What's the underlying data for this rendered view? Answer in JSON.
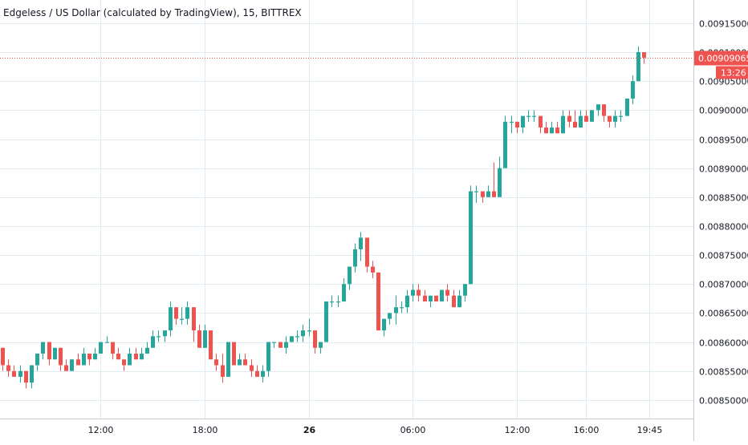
{
  "chart_data": {
    "type": "candlestick",
    "title": "Edgeless / US Dollar (calculated by TradingView), 15, BITTREX",
    "y_ticks": [
      "0.00915000",
      "0.00910000",
      "0.00905000",
      "0.00900000",
      "0.00895000",
      "0.00890000",
      "0.00885000",
      "0.00880000",
      "0.00875000",
      "0.00870000",
      "0.00865000",
      "0.00860000",
      "0.00855000",
      "0.00850000"
    ],
    "y_tick_values": [
      0.00915,
      0.0091,
      0.00905,
      0.009,
      0.00895,
      0.0089,
      0.00885,
      0.0088,
      0.00875,
      0.0087,
      0.00865,
      0.0086,
      0.00855,
      0.0085
    ],
    "ylim": [
      0.008468,
      0.00919
    ],
    "x_ticks": [
      {
        "label": "06:00",
        "bar": -7
      },
      {
        "label": "12:00",
        "bar": 17
      },
      {
        "label": "18:00",
        "bar": 35
      },
      {
        "label": "26",
        "bar": 53
      },
      {
        "label": "06:00",
        "bar": 71
      },
      {
        "label": "12:00",
        "bar": 89
      },
      {
        "label": "16:00",
        "bar": 101
      },
      {
        "label": "19:45",
        "bar": 112
      }
    ],
    "last_price": {
      "value": 0.00909065,
      "label": "0.00909065",
      "countdown": "13:26"
    },
    "colors": {
      "up": "#26a69a",
      "down": "#ef5350",
      "grid": "#e1ecf2",
      "axis_text": "#131722"
    },
    "ohlc": [
      [
        0.00859,
        0.00859,
        0.00855,
        0.00856
      ],
      [
        0.00856,
        0.00857,
        0.00854,
        0.00855
      ],
      [
        0.00855,
        0.00856,
        0.00854,
        0.00854
      ],
      [
        0.00854,
        0.00856,
        0.00853,
        0.00855
      ],
      [
        0.00855,
        0.00855,
        0.00852,
        0.00853
      ],
      [
        0.00853,
        0.00856,
        0.00852,
        0.00856
      ],
      [
        0.00856,
        0.00858,
        0.00855,
        0.00858
      ],
      [
        0.00858,
        0.0086,
        0.00857,
        0.0086
      ],
      [
        0.0086,
        0.0086,
        0.00856,
        0.00857
      ],
      [
        0.00857,
        0.00859,
        0.00857,
        0.00859
      ],
      [
        0.00859,
        0.00859,
        0.00855,
        0.00856
      ],
      [
        0.00856,
        0.00857,
        0.00855,
        0.00855
      ],
      [
        0.00855,
        0.00857,
        0.00855,
        0.00857
      ],
      [
        0.00857,
        0.00858,
        0.00856,
        0.00856
      ],
      [
        0.00856,
        0.00859,
        0.00856,
        0.00858
      ],
      [
        0.00858,
        0.00858,
        0.00856,
        0.00857
      ],
      [
        0.00857,
        0.00859,
        0.00857,
        0.00858
      ],
      [
        0.00858,
        0.0086,
        0.00858,
        0.0086
      ],
      [
        0.0086,
        0.00861,
        0.0086,
        0.0086
      ],
      [
        0.0086,
        0.0086,
        0.00857,
        0.00858
      ],
      [
        0.00858,
        0.00859,
        0.00857,
        0.00857
      ],
      [
        0.00857,
        0.00857,
        0.00855,
        0.00856
      ],
      [
        0.00856,
        0.00859,
        0.00856,
        0.00858
      ],
      [
        0.00858,
        0.00859,
        0.00857,
        0.00857
      ],
      [
        0.00857,
        0.00859,
        0.00857,
        0.00858
      ],
      [
        0.00858,
        0.0086,
        0.00858,
        0.00859
      ],
      [
        0.00859,
        0.00862,
        0.00859,
        0.00861
      ],
      [
        0.00861,
        0.00862,
        0.0086,
        0.00861
      ],
      [
        0.00861,
        0.00862,
        0.0086,
        0.00862
      ],
      [
        0.00862,
        0.00867,
        0.00861,
        0.00866
      ],
      [
        0.00866,
        0.00866,
        0.00863,
        0.00864
      ],
      [
        0.00864,
        0.00866,
        0.00863,
        0.00864
      ],
      [
        0.00864,
        0.00867,
        0.00863,
        0.00866
      ],
      [
        0.00866,
        0.00866,
        0.0086,
        0.00862
      ],
      [
        0.00862,
        0.00863,
        0.00859,
        0.00859
      ],
      [
        0.00859,
        0.00863,
        0.00859,
        0.00862
      ],
      [
        0.00862,
        0.00862,
        0.00857,
        0.00857
      ],
      [
        0.00857,
        0.00858,
        0.00855,
        0.00856
      ],
      [
        0.00856,
        0.00858,
        0.00853,
        0.00854
      ],
      [
        0.00854,
        0.0086,
        0.00854,
        0.0086
      ],
      [
        0.0086,
        0.0086,
        0.00856,
        0.00856
      ],
      [
        0.00856,
        0.00858,
        0.00856,
        0.00857
      ],
      [
        0.00857,
        0.00858,
        0.00856,
        0.00856
      ],
      [
        0.00856,
        0.00857,
        0.00854,
        0.00855
      ],
      [
        0.00855,
        0.00856,
        0.00854,
        0.00854
      ],
      [
        0.00854,
        0.00856,
        0.00853,
        0.00855
      ],
      [
        0.00855,
        0.0086,
        0.00854,
        0.0086
      ],
      [
        0.0086,
        0.0086,
        0.00859,
        0.0086
      ],
      [
        0.0086,
        0.0086,
        0.00859,
        0.00859
      ],
      [
        0.00859,
        0.00861,
        0.00858,
        0.0086
      ],
      [
        0.0086,
        0.00861,
        0.0086,
        0.00861
      ],
      [
        0.00861,
        0.00862,
        0.0086,
        0.00861
      ],
      [
        0.00861,
        0.00863,
        0.0086,
        0.00862
      ],
      [
        0.00862,
        0.00864,
        0.00861,
        0.00862
      ],
      [
        0.00862,
        0.00862,
        0.00858,
        0.00859
      ],
      [
        0.00859,
        0.0086,
        0.00858,
        0.0086
      ],
      [
        0.0086,
        0.00867,
        0.0086,
        0.00867
      ],
      [
        0.00867,
        0.00868,
        0.00866,
        0.00867
      ],
      [
        0.00867,
        0.00868,
        0.00866,
        0.00867
      ],
      [
        0.00867,
        0.00871,
        0.00867,
        0.0087
      ],
      [
        0.0087,
        0.00873,
        0.00869,
        0.00873
      ],
      [
        0.00873,
        0.00877,
        0.00872,
        0.00876
      ],
      [
        0.00876,
        0.00879,
        0.00874,
        0.00878
      ],
      [
        0.00878,
        0.00878,
        0.00872,
        0.00873
      ],
      [
        0.00873,
        0.00874,
        0.00871,
        0.00872
      ],
      [
        0.00872,
        0.00872,
        0.00862,
        0.00862
      ],
      [
        0.00862,
        0.00864,
        0.00861,
        0.00864
      ],
      [
        0.00864,
        0.00865,
        0.00863,
        0.00865
      ],
      [
        0.00865,
        0.00868,
        0.00863,
        0.00866
      ],
      [
        0.00866,
        0.00867,
        0.00865,
        0.00866
      ],
      [
        0.00866,
        0.00869,
        0.00865,
        0.00868
      ],
      [
        0.00868,
        0.0087,
        0.00867,
        0.00869
      ],
      [
        0.00869,
        0.0087,
        0.00867,
        0.00868
      ],
      [
        0.00868,
        0.00869,
        0.00867,
        0.00867
      ],
      [
        0.00867,
        0.00868,
        0.00866,
        0.00868
      ],
      [
        0.00868,
        0.00868,
        0.00867,
        0.00867
      ],
      [
        0.00867,
        0.00869,
        0.00867,
        0.00869
      ],
      [
        0.00869,
        0.0087,
        0.00867,
        0.00868
      ],
      [
        0.00868,
        0.00869,
        0.00866,
        0.00866
      ],
      [
        0.00866,
        0.00869,
        0.00866,
        0.00868
      ],
      [
        0.00868,
        0.0087,
        0.00867,
        0.0087
      ],
      [
        0.0087,
        0.00887,
        0.0087,
        0.00886
      ],
      [
        0.00886,
        0.00887,
        0.00884,
        0.00886
      ],
      [
        0.00886,
        0.00886,
        0.00884,
        0.00885
      ],
      [
        0.00885,
        0.00887,
        0.00885,
        0.00886
      ],
      [
        0.00886,
        0.00891,
        0.00885,
        0.00885
      ],
      [
        0.00885,
        0.00892,
        0.00885,
        0.0089
      ],
      [
        0.0089,
        0.00899,
        0.0089,
        0.00898
      ],
      [
        0.00898,
        0.00899,
        0.00896,
        0.00898
      ],
      [
        0.00898,
        0.00898,
        0.00896,
        0.00897
      ],
      [
        0.00897,
        0.00899,
        0.00896,
        0.00899
      ],
      [
        0.00899,
        0.009,
        0.00898,
        0.00899
      ],
      [
        0.00899,
        0.009,
        0.00898,
        0.00899
      ],
      [
        0.00899,
        0.00899,
        0.00896,
        0.00897
      ],
      [
        0.00897,
        0.00898,
        0.00896,
        0.00896
      ],
      [
        0.00896,
        0.00898,
        0.00896,
        0.00897
      ],
      [
        0.00897,
        0.00898,
        0.00896,
        0.00896
      ],
      [
        0.00896,
        0.009,
        0.00896,
        0.00899
      ],
      [
        0.00899,
        0.009,
        0.00897,
        0.00898
      ],
      [
        0.00898,
        0.009,
        0.00897,
        0.00897
      ],
      [
        0.00897,
        0.009,
        0.00897,
        0.00899
      ],
      [
        0.00899,
        0.009,
        0.00898,
        0.00898
      ],
      [
        0.00898,
        0.009,
        0.00898,
        0.009
      ],
      [
        0.009,
        0.00901,
        0.00899,
        0.00901
      ],
      [
        0.00901,
        0.00901,
        0.00898,
        0.00899
      ],
      [
        0.00899,
        0.00899,
        0.00897,
        0.00898
      ],
      [
        0.00898,
        0.009,
        0.00897,
        0.00899
      ],
      [
        0.00899,
        0.009,
        0.00898,
        0.00899
      ],
      [
        0.00899,
        0.00902,
        0.00899,
        0.00902
      ],
      [
        0.00902,
        0.00906,
        0.00901,
        0.00905
      ],
      [
        0.00905,
        0.00911,
        0.00905,
        0.0091
      ],
      [
        0.0091,
        0.0091,
        0.00908,
        0.00909065
      ]
    ]
  }
}
